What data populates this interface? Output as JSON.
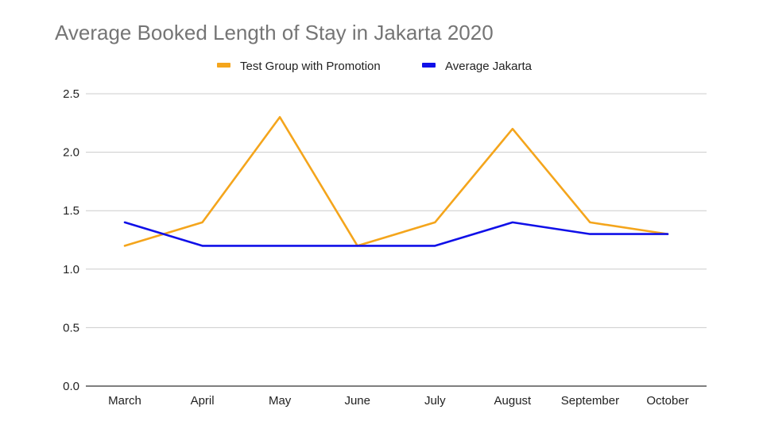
{
  "chart_data": {
    "type": "line",
    "title": "Average Booked Length of Stay in Jakarta 2020",
    "xlabel": "",
    "ylabel": "",
    "categories": [
      "March",
      "April",
      "May",
      "June",
      "July",
      "August",
      "September",
      "October"
    ],
    "series": [
      {
        "name": "Test Group with Promotion",
        "color": "#f4a51c",
        "values": [
          1.2,
          1.4,
          2.3,
          1.2,
          1.4,
          2.2,
          1.4,
          1.3
        ]
      },
      {
        "name": "Average Jakarta",
        "color": "#1010e8",
        "values": [
          1.4,
          1.2,
          1.2,
          1.2,
          1.2,
          1.4,
          1.3,
          1.3
        ]
      }
    ],
    "ylim": [
      0,
      2.5
    ],
    "yticks": [
      "0.0",
      "0.5",
      "1.0",
      "1.5",
      "2.0",
      "2.5"
    ],
    "grid": true,
    "legend_position": "top"
  }
}
